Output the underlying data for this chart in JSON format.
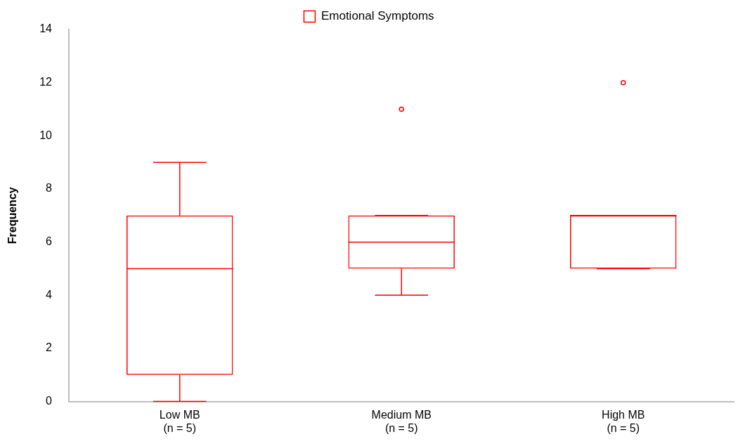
{
  "chart_data": {
    "type": "box",
    "categories": [
      "Low MB\n(n = 5)",
      "Medium MB\n(n = 5)",
      "High MB\n(n = 5)"
    ],
    "series": [
      {
        "name": "Emotional Symptoms",
        "color": "#ff0000",
        "boxes": [
          {
            "low": 0,
            "q1": 1,
            "median": 5,
            "q3": 7,
            "high": 9
          },
          {
            "low": 4,
            "q1": 5,
            "median": 6,
            "q3": 7,
            "high": 7,
            "outliers": [
              11
            ]
          },
          {
            "low": 5,
            "q1": 5,
            "median": 7,
            "q3": 7,
            "high": 7,
            "outliers": [
              12
            ]
          }
        ]
      }
    ],
    "ylabel": "Frequency",
    "ylim": [
      0,
      14
    ],
    "yticks": [
      0,
      2,
      4,
      6,
      8,
      10,
      12,
      14
    ],
    "grid": false,
    "legend": "top"
  }
}
